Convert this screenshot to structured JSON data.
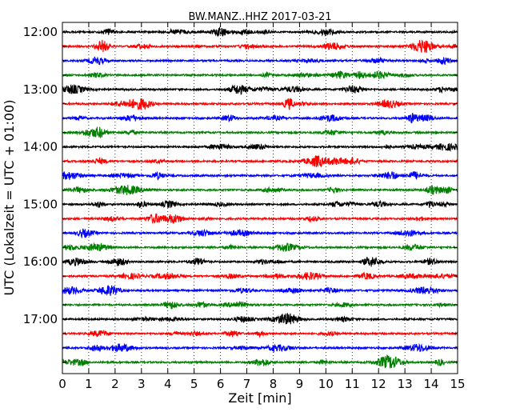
{
  "chart_data": {
    "type": "line",
    "title": "BW.MANZ..HHZ 2017-03-21",
    "xlabel": "Zeit  [min]",
    "ylabel": "UTC (Lokalzeit = UTC + 01:00)",
    "xlim": [
      0,
      15
    ],
    "x_ticks": [
      "0",
      "1",
      "2",
      "3",
      "4",
      "5",
      "6",
      "7",
      "8",
      "9",
      "10",
      "11",
      "12",
      "13",
      "14",
      "15"
    ],
    "y_ticks": [
      "12:00",
      "13:00",
      "14:00",
      "15:00",
      "16:00",
      "17:00"
    ],
    "rows_per_hour": 4,
    "trace_start_times": [
      "12:00",
      "12:15",
      "12:30",
      "12:45",
      "13:00",
      "13:15",
      "13:30",
      "13:45",
      "14:00",
      "14:15",
      "14:30",
      "14:45",
      "15:00",
      "15:15",
      "15:30",
      "15:45",
      "16:00",
      "16:15",
      "16:30",
      "16:45",
      "17:00",
      "17:15",
      "17:30",
      "17:45"
    ],
    "trace_colors": [
      "#000000",
      "#ff0000",
      "#0000ff",
      "#007f00"
    ],
    "grid": "vertical dotted at each minute"
  }
}
